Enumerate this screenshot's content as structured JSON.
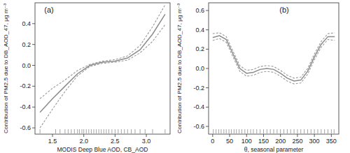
{
  "chart_data": [
    {
      "type": "line",
      "annotation": "(a)",
      "x_label": "MODIS Deep Blue AOD, CB_AOD",
      "y_label": "Contribution of PM2.5 due to DB_AOD_47, μg m⁻³",
      "xlim": [
        1.22,
        3.38
      ],
      "ylim": [
        -0.66,
        0.6
      ],
      "xticks": [
        1.5,
        {
          "value": 2,
          "label": "2.0"
        },
        2.5,
        {
          "value": 3,
          "label": "3.0"
        }
      ],
      "yticks": [
        -0.6,
        -0.4,
        -0.2,
        {
          "value": 0,
          "label": "0.0"
        },
        0.2,
        0.4
      ],
      "x": [
        1.3,
        1.5,
        1.7,
        1.9,
        2.1,
        2.3,
        2.5,
        2.7,
        2.9,
        3.1,
        3.3
      ],
      "series": [
        {
          "color": "#8c8c8c",
          "line_style": "solid",
          "values": [
            -0.45,
            -0.32,
            -0.2,
            -0.08,
            0.0,
            0.03,
            0.04,
            0.07,
            0.15,
            0.3,
            0.49
          ]
        },
        {
          "color": "#9a9a9a",
          "line_style": "dashed",
          "values": [
            -0.6,
            -0.42,
            -0.25,
            -0.1,
            -0.01,
            0.02,
            0.03,
            0.05,
            0.12,
            0.23,
            0.39
          ]
        },
        {
          "color": "#9a9a9a",
          "line_style": "dashed",
          "values": [
            -0.32,
            -0.22,
            -0.14,
            -0.05,
            0.01,
            0.04,
            0.055,
            0.09,
            0.19,
            0.37,
            0.58
          ]
        }
      ],
      "rug": [
        1.3,
        1.55,
        1.62,
        1.7,
        1.75,
        1.8,
        1.85,
        1.9,
        1.93,
        1.97,
        2.0,
        2.04,
        2.08,
        2.12,
        2.16,
        2.2,
        2.24,
        2.28,
        2.32,
        2.36,
        2.4,
        2.45,
        2.5,
        2.55,
        2.6,
        2.65,
        2.7,
        2.76,
        2.82,
        2.9,
        2.98,
        3.1,
        3.3
      ]
    },
    {
      "type": "line",
      "annotation": "(b)",
      "x_label": "θ, seasonal parameter",
      "y_label": "Contribution of PM2.5 due to DB_AOD_47, μg m⁻³",
      "xlim": [
        -12,
        372
      ],
      "ylim": [
        -0.68,
        0.68
      ],
      "xticks": [
        0,
        50,
        100,
        150,
        200,
        250,
        300,
        350
      ],
      "yticks": [
        -0.6,
        -0.4,
        -0.2,
        {
          "value": 0,
          "label": "0.0"
        },
        0.2,
        0.4,
        0.6
      ],
      "x": [
        0,
        20,
        40,
        60,
        80,
        100,
        120,
        140,
        160,
        180,
        200,
        220,
        240,
        260,
        280,
        300,
        320,
        340,
        360
      ],
      "series": [
        {
          "color": "#8c8c8c",
          "line_style": "solid",
          "values": [
            0.32,
            0.34,
            0.3,
            0.15,
            0.0,
            -0.05,
            -0.04,
            -0.01,
            0.0,
            -0.01,
            -0.05,
            -0.1,
            -0.13,
            -0.12,
            -0.03,
            0.12,
            0.25,
            0.33,
            0.33
          ]
        },
        {
          "color": "#9a9a9a",
          "line_style": "dashed",
          "values": [
            0.29,
            0.31,
            0.27,
            0.12,
            -0.03,
            -0.08,
            -0.07,
            -0.04,
            -0.03,
            -0.04,
            -0.08,
            -0.13,
            -0.16,
            -0.15,
            -0.06,
            0.09,
            0.22,
            0.3,
            0.29
          ]
        },
        {
          "color": "#9a9a9a",
          "line_style": "dashed",
          "values": [
            0.36,
            0.37,
            0.33,
            0.18,
            0.03,
            -0.02,
            -0.01,
            0.02,
            0.03,
            0.02,
            -0.02,
            -0.07,
            -0.1,
            -0.09,
            0.0,
            0.15,
            0.28,
            0.36,
            0.37
          ]
        }
      ],
      "rug": [
        2,
        10,
        18,
        25,
        33,
        40,
        48,
        55,
        63,
        70,
        78,
        86,
        95,
        103,
        112,
        120,
        130,
        140,
        150,
        160,
        170,
        180,
        190,
        200,
        210,
        220,
        230,
        240,
        250,
        260,
        270,
        280,
        290,
        300,
        310,
        320,
        330,
        340,
        350,
        358
      ]
    }
  ]
}
